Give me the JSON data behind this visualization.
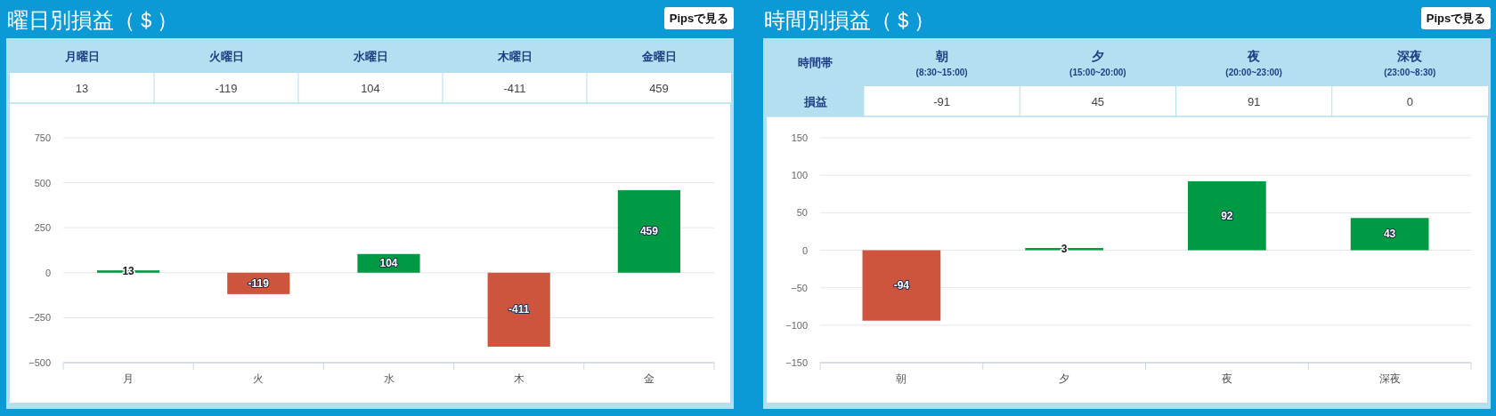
{
  "chart_data": [
    {
      "type": "bar",
      "title": "曜日別損益（＄）",
      "categories": [
        "月",
        "火",
        "水",
        "木",
        "金"
      ],
      "values": [
        13,
        -119,
        104,
        -411,
        459
      ],
      "colors": [
        "#009a44",
        "#cd553e",
        "#009a44",
        "#cd553e",
        "#009a44"
      ],
      "ylim": [
        -500,
        750
      ],
      "yticks": [
        -500,
        -250,
        0,
        250,
        500,
        750
      ],
      "grid": "y",
      "data_labels": true,
      "annotations": [
        "Pipsで見る",
        "月曜日",
        "火曜日",
        "水曜日",
        "木曜日",
        "金曜日",
        "13",
        "-119",
        "104",
        "-411",
        "459"
      ]
    },
    {
      "type": "bar",
      "title": "時間別損益（＄）",
      "categories": [
        "朝",
        "夕",
        "夜",
        "深夜"
      ],
      "values": [
        -94,
        3,
        92,
        43
      ],
      "colors": [
        "#cd553e",
        "#009a44",
        "#009a44",
        "#009a44"
      ],
      "ylim": [
        -150,
        150
      ],
      "yticks": [
        -150,
        -100,
        -50,
        0,
        50,
        100,
        150
      ],
      "grid": "y",
      "data_labels": true,
      "annotations": [
        "Pipsで見る",
        "時間帯",
        "朝\n(8:30~15:00)",
        "夕\n(15:00~20:00)",
        "夜\n(20:00~23:00)",
        "深夜\n(23:00~8:30)",
        "損益",
        "-91",
        "45",
        "91",
        "0"
      ]
    }
  ]
}
